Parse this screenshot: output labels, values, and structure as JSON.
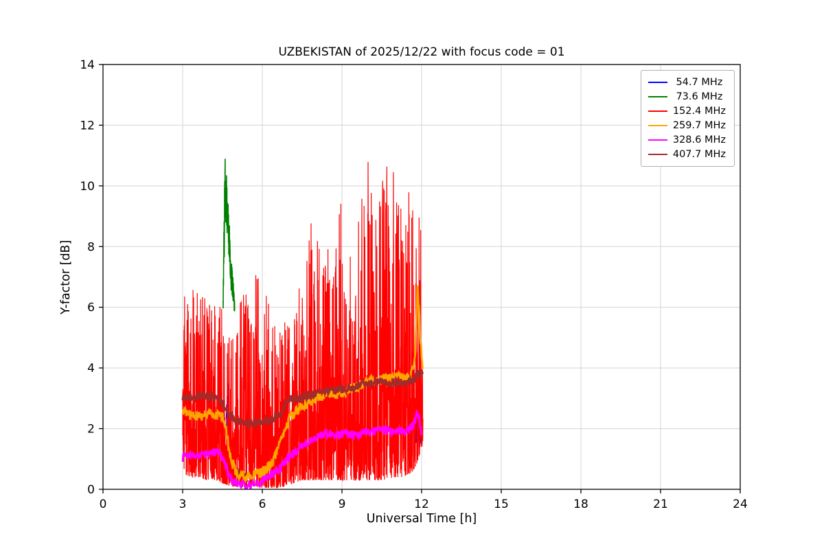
{
  "chart_data": {
    "type": "line",
    "title": "UZBEKISTAN of 2025/12/22 with focus code = 01",
    "xlabel": "Universal Time [h]",
    "ylabel": "Y-factor [dB]",
    "xlim": [
      0,
      24
    ],
    "ylim": [
      0,
      14
    ],
    "xticks": [
      0,
      3,
      6,
      9,
      12,
      15,
      18,
      21,
      24
    ],
    "yticks": [
      0,
      2,
      4,
      6,
      8,
      10,
      12,
      14
    ],
    "grid": true,
    "grid_color": "#d3d3d3",
    "axis_color": "#000000",
    "legend_position": "upper right",
    "series": [
      {
        "name": " 54.7 MHz",
        "color": "#0000ff",
        "type": "spiky",
        "width": 1.2,
        "segments": [
          {
            "x": [
              4.64,
              4.7,
              4.76
            ],
            "top": [
              2.6,
              4.6,
              2.4
            ],
            "bottom": [
              1.6,
              1.8,
              1.5
            ],
            "step": 0.004,
            "pow": 1.3
          },
          {
            "x": [
              11.72,
              11.85,
              12.0
            ],
            "top": [
              2.3,
              2.7,
              2.2
            ],
            "bottom": [
              1.3,
              1.6,
              1.4
            ],
            "step": 0.004,
            "pow": 1.0
          }
        ]
      },
      {
        "name": " 73.6 MHz",
        "color": "#008000",
        "type": "spiky",
        "width": 1.6,
        "segments": [
          {
            "x": [
              4.52,
              4.56,
              4.6,
              4.64,
              4.68,
              4.72,
              4.78,
              4.84,
              4.9,
              4.96
            ],
            "top": [
              6.2,
              9.0,
              11.25,
              10.6,
              10.0,
              9.4,
              8.5,
              7.6,
              6.9,
              6.3
            ],
            "bottom": [
              5.6,
              7.0,
              8.8,
              8.6,
              8.2,
              7.8,
              7.0,
              6.4,
              6.0,
              5.7
            ],
            "step": 0.003,
            "pow": 0.8
          },
          {
            "x": [
              5.05,
              5.2,
              5.45
            ],
            "top": [
              0.8,
              0.6,
              0.5
            ],
            "bottom": [
              0.2,
              0.15,
              0.2
            ],
            "step": 0.006,
            "pow": 1.0
          }
        ]
      },
      {
        "name": "152.4 MHz",
        "color": "#ff0000",
        "type": "spiky",
        "width": 1.2,
        "segments": [
          {
            "x": [
              3.0,
              3.1,
              3.3,
              3.6,
              3.9,
              4.2,
              4.5,
              4.8,
              5.1,
              5.4,
              5.7,
              6.0,
              6.3,
              6.6,
              6.9,
              7.2,
              7.5,
              7.8,
              8.0,
              8.3,
              8.6,
              9.0,
              9.3,
              9.6,
              10.0,
              10.3,
              10.6,
              11.0,
              11.3,
              11.6,
              11.8,
              11.95,
              12.05
            ],
            "top": [
              7.5,
              6.0,
              6.6,
              7.0,
              6.2,
              6.4,
              5.9,
              5.8,
              6.2,
              6.6,
              7.0,
              7.4,
              6.0,
              5.3,
              5.6,
              6.3,
              7.9,
              8.3,
              10.9,
              7.6,
              8.2,
              9.7,
              8.0,
              9.0,
              10.9,
              9.3,
              10.6,
              10.8,
              9.5,
              10.0,
              8.7,
              10.4,
              3.5
            ],
            "bottom": [
              0.7,
              0.5,
              0.4,
              0.4,
              0.3,
              0.3,
              0.2,
              0.1,
              0.1,
              0.1,
              0.1,
              0.05,
              0.05,
              0.05,
              0.1,
              0.2,
              0.3,
              0.3,
              0.3,
              0.3,
              0.3,
              0.3,
              0.3,
              0.3,
              0.3,
              0.3,
              0.3,
              0.4,
              0.4,
              0.5,
              0.8,
              1.2,
              1.5
            ],
            "step": 0.006,
            "pow": 2.3
          }
        ]
      },
      {
        "name": "259.7 MHz",
        "color": "#ffa500",
        "type": "band",
        "width": 2.8,
        "amp": 0.18,
        "x": [
          3.0,
          3.3,
          3.6,
          4.0,
          4.3,
          4.55,
          4.7,
          4.85,
          5.0,
          5.2,
          5.5,
          5.8,
          6.0,
          6.2,
          6.4,
          6.6,
          6.8,
          7.0,
          7.3,
          7.6,
          8.0,
          8.4,
          8.8,
          9.2,
          9.6,
          10.0,
          10.4,
          10.8,
          11.1,
          11.4,
          11.6,
          11.75,
          11.85,
          11.95,
          12.05
        ],
        "y": [
          2.5,
          2.45,
          2.4,
          2.5,
          2.45,
          2.35,
          1.6,
          0.9,
          0.6,
          0.45,
          0.4,
          0.5,
          0.55,
          0.7,
          0.9,
          1.4,
          1.9,
          2.3,
          2.6,
          2.8,
          3.0,
          3.1,
          3.15,
          3.25,
          3.4,
          3.55,
          3.6,
          3.65,
          3.7,
          3.6,
          3.7,
          4.3,
          6.8,
          5.0,
          3.8
        ]
      },
      {
        "name": "328.6 MHz",
        "color": "#ff00ff",
        "type": "band",
        "width": 2.8,
        "amp": 0.15,
        "x": [
          3.0,
          3.3,
          3.6,
          4.0,
          4.3,
          4.5,
          4.7,
          4.9,
          5.1,
          5.4,
          5.7,
          6.0,
          6.3,
          6.6,
          6.9,
          7.2,
          7.5,
          7.8,
          8.1,
          8.4,
          8.7,
          9.0,
          9.4,
          9.8,
          10.2,
          10.6,
          11.0,
          11.4,
          11.7,
          11.85,
          12.0
        ],
        "y": [
          1.05,
          1.1,
          1.12,
          1.18,
          1.22,
          1.05,
          0.55,
          0.25,
          0.15,
          0.1,
          0.15,
          0.3,
          0.45,
          0.6,
          0.95,
          1.2,
          1.45,
          1.6,
          1.75,
          1.85,
          1.8,
          1.85,
          1.8,
          1.85,
          1.9,
          1.95,
          1.9,
          1.95,
          2.1,
          2.6,
          1.8
        ]
      },
      {
        "name": "407.7 MHz",
        "color": "#a52a2a",
        "type": "band",
        "width": 3.2,
        "amp": 0.13,
        "x": [
          3.0,
          3.4,
          3.8,
          4.1,
          4.4,
          4.6,
          4.8,
          5.0,
          5.3,
          5.6,
          6.0,
          6.4,
          6.7,
          6.9,
          7.1,
          7.4,
          7.8,
          8.2,
          8.6,
          9.0,
          9.4,
          9.8,
          10.2,
          10.5,
          10.8,
          11.1,
          11.4,
          11.7,
          11.9,
          12.05
        ],
        "y": [
          3.0,
          3.05,
          3.1,
          3.05,
          2.95,
          2.7,
          2.4,
          2.25,
          2.2,
          2.2,
          2.25,
          2.3,
          2.5,
          2.9,
          3.0,
          3.0,
          3.1,
          3.2,
          3.25,
          3.3,
          3.35,
          3.45,
          3.5,
          3.55,
          3.5,
          3.5,
          3.55,
          3.6,
          3.85,
          3.75
        ]
      }
    ]
  }
}
